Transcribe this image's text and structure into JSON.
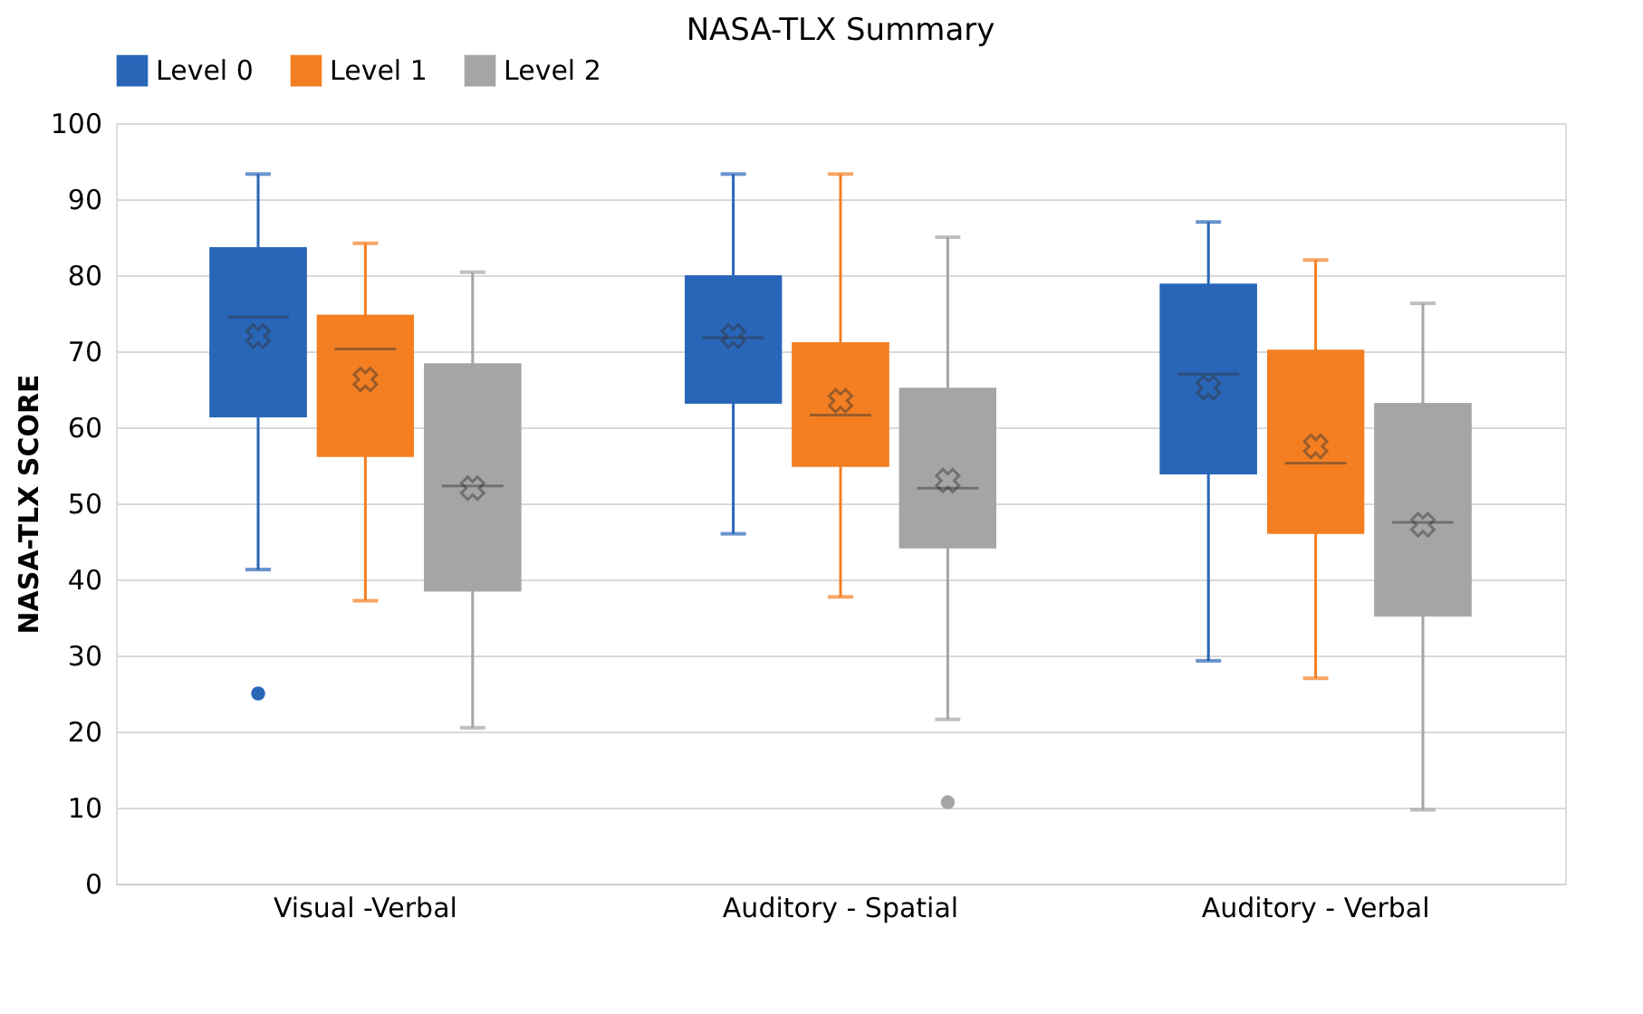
{
  "chart_data": {
    "type": "box",
    "title": "NASA-TLX Summary",
    "ylabel": "NASA-TLX SCORE",
    "categories": [
      "Visual -Verbal",
      "Auditory - Spatial",
      "Auditory - Verbal"
    ],
    "series": [
      {
        "name": "Level 0",
        "color": "#2966b8",
        "boxes": [
          {
            "low": 41.3,
            "q1": 61.5,
            "median": 74.5,
            "q3": 83.5,
            "high": 93.3,
            "mean": 72,
            "outliers": [
              25
            ]
          },
          {
            "low": 46,
            "q1": 63.3,
            "median": 71.8,
            "q3": 79.8,
            "high": 93.3,
            "mean": 72
          },
          {
            "low": 29.3,
            "q1": 54,
            "median": 67,
            "q3": 78.7,
            "high": 87,
            "mean": 65.2
          }
        ]
      },
      {
        "name": "Level 1",
        "color": "#f37f22",
        "boxes": [
          {
            "low": 37.2,
            "q1": 56.3,
            "median": 70.3,
            "q3": 74.6,
            "high": 84.2,
            "mean": 66.3
          },
          {
            "low": 37.7,
            "q1": 55,
            "median": 61.6,
            "q3": 71,
            "high": 93.3,
            "mean": 63.5
          },
          {
            "low": 27,
            "q1": 46.2,
            "median": 55.3,
            "q3": 70,
            "high": 82,
            "mean": 57.5
          }
        ]
      },
      {
        "name": "Level 2",
        "color": "#a5a5a5",
        "boxes": [
          {
            "low": 20.5,
            "q1": 38.6,
            "median": 52.3,
            "q3": 68.2,
            "high": 80.4,
            "mean": 52
          },
          {
            "low": 21.6,
            "q1": 44.3,
            "median": 52,
            "q3": 65,
            "high": 85,
            "mean": 53,
            "outliers": [
              10.7
            ]
          },
          {
            "low": 9.7,
            "q1": 35.3,
            "median": 47.5,
            "q3": 63,
            "high": 76.3,
            "mean": 47.2
          }
        ]
      }
    ],
    "ylim": [
      0,
      100
    ],
    "yticks": [
      0,
      10,
      20,
      30,
      40,
      50,
      60,
      70,
      80,
      90,
      100
    ],
    "grid": "y",
    "legend": "top"
  }
}
